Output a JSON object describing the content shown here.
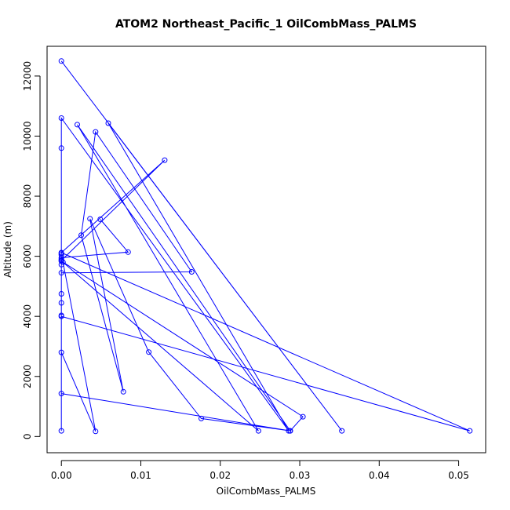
{
  "chart_data": {
    "type": "line",
    "title": "ATOM2 Northeast_Pacific_1 OilCombMass_PALMS",
    "xlabel": "OilCombMass_PALMS",
    "ylabel": "Altitude (m)",
    "xlim": [
      -0.0018,
      0.0534
    ],
    "ylim": [
      -540,
      12990
    ],
    "xticks": [
      0.0,
      0.01,
      0.02,
      0.03,
      0.04,
      0.05
    ],
    "xtick_labels": [
      "0.00",
      "0.01",
      "0.02",
      "0.03",
      "0.04",
      "0.05"
    ],
    "yticks": [
      0,
      2000,
      4000,
      6000,
      8000,
      10000,
      12000
    ],
    "ytick_labels": [
      "0",
      "2000",
      "4000",
      "6000",
      "8000",
      "10000",
      "12000"
    ],
    "color": "#0000ff",
    "marker": "open-circle",
    "series": [
      {
        "x": [
          0.0,
          0.0353,
          0.0059,
          0.0286,
          0.0,
          0.0,
          0.0,
          0.0,
          0.0,
          0.0,
          0.0,
          0.0,
          0.0,
          0.0,
          0.0043,
          0.0002,
          0.0248,
          0.002,
          0.0288,
          0.0,
          0.0,
          0.0,
          0.0164,
          0.0043,
          0.0025,
          0.0078,
          0.0036,
          0.011,
          0.0176,
          0.0288,
          0.0304,
          0.0,
          0.0,
          0.013,
          0.0,
          0.0514,
          0.0,
          0.0,
          0.0084,
          0.0049
        ],
        "y": [
          12500,
          190,
          10430,
          190,
          10600,
          9600,
          6100,
          6050,
          5900,
          5720,
          4750,
          4450,
          4030,
          2800,
          170,
          5800,
          190,
          10380,
          190,
          1430,
          190,
          5450,
          5480,
          10140,
          6700,
          1490,
          7250,
          2810,
          600,
          190,
          660,
          5840,
          5860,
          9200,
          6120,
          190,
          4000,
          5950,
          6140,
          7230
        ]
      }
    ]
  }
}
